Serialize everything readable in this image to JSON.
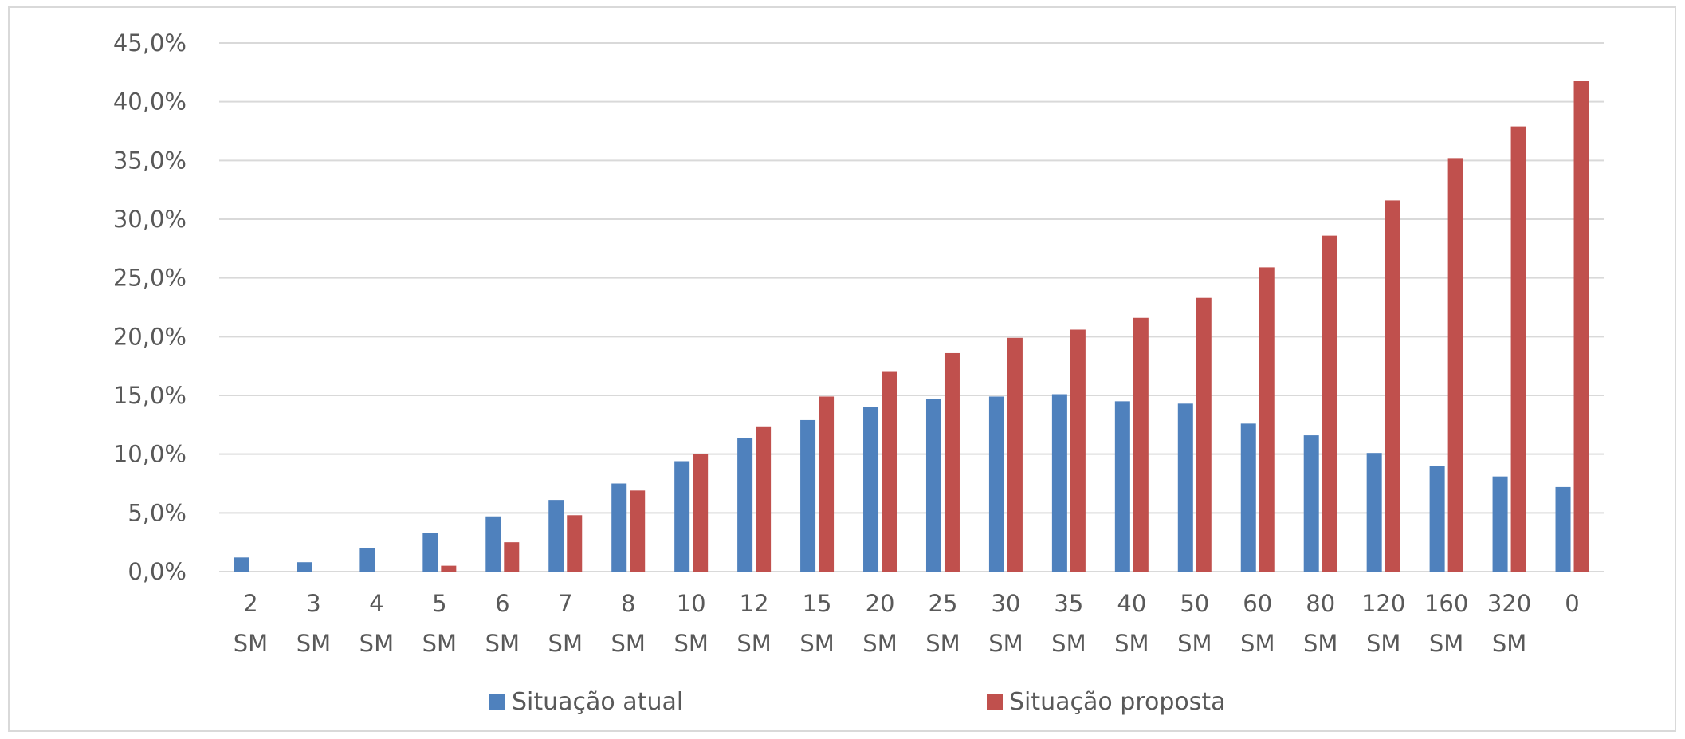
{
  "chart_data": {
    "type": "bar",
    "title": "",
    "xlabel": "",
    "ylabel": "",
    "categories": [
      [
        "2",
        "SM"
      ],
      [
        "3",
        "SM"
      ],
      [
        "4",
        "SM"
      ],
      [
        "5",
        "SM"
      ],
      [
        "6",
        "SM"
      ],
      [
        "7",
        "SM"
      ],
      [
        "8",
        "SM"
      ],
      [
        "10",
        "SM"
      ],
      [
        "12",
        "SM"
      ],
      [
        "15",
        "SM"
      ],
      [
        "20",
        "SM"
      ],
      [
        "25",
        "SM"
      ],
      [
        "30",
        "SM"
      ],
      [
        "35",
        "SM"
      ],
      [
        "40",
        "SM"
      ],
      [
        "50",
        "SM"
      ],
      [
        "60",
        "SM"
      ],
      [
        "80",
        "SM"
      ],
      [
        "120",
        "SM"
      ],
      [
        "160",
        "SM"
      ],
      [
        "320",
        "SM"
      ],
      [
        "0",
        ""
      ]
    ],
    "series": [
      {
        "name": "Situação atual",
        "color": "#4f81bd",
        "values": [
          1.2,
          0.8,
          2.0,
          3.3,
          4.7,
          6.1,
          7.5,
          9.4,
          11.4,
          12.9,
          14.0,
          14.7,
          14.9,
          15.1,
          14.5,
          14.3,
          12.6,
          11.6,
          10.1,
          9.0,
          8.1,
          7.2
        ]
      },
      {
        "name": "Situação proposta",
        "color": "#c0504d",
        "values": [
          0.0,
          0.0,
          0.0,
          0.5,
          2.5,
          4.8,
          6.9,
          10.0,
          12.3,
          14.9,
          17.0,
          18.6,
          19.9,
          20.6,
          21.6,
          23.3,
          25.9,
          28.6,
          31.6,
          35.2,
          37.9,
          41.8
        ]
      }
    ],
    "ylim": [
      0,
      45
    ],
    "ytick_step": 5,
    "ytick_labels": [
      "0,0%",
      "5,0%",
      "10,0%",
      "15,0%",
      "20,0%",
      "25,0%",
      "30,0%",
      "35,0%",
      "40,0%",
      "45,0%"
    ],
    "grid": true,
    "grid_color": "#d9d9d9",
    "legend_position": "bottom"
  }
}
